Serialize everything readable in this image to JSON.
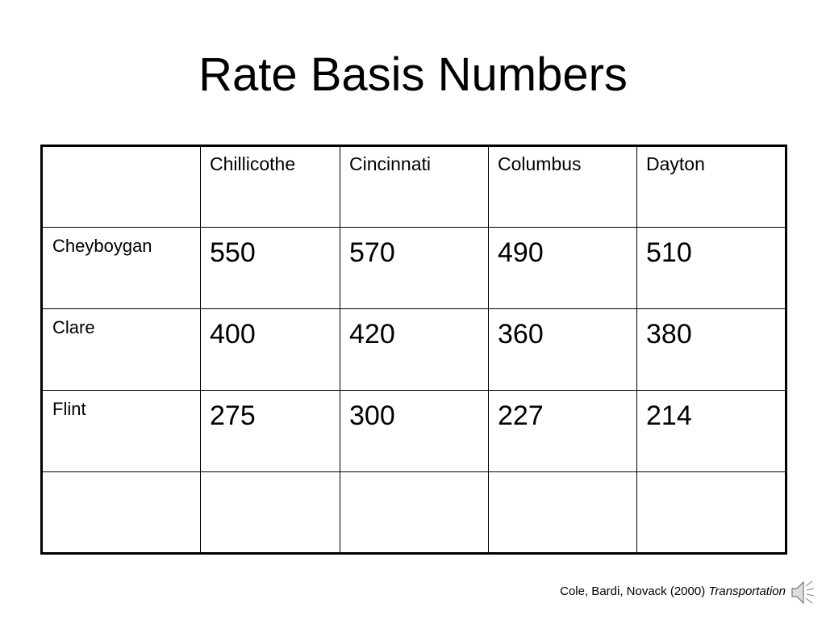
{
  "title": "Rate Basis Numbers",
  "table": {
    "columns": [
      "Chillicothe",
      "Cincinnati",
      "Columbus",
      "Dayton"
    ],
    "rows": [
      {
        "label": "Cheyboygan",
        "values": [
          550,
          570,
          490,
          510
        ]
      },
      {
        "label": "Clare",
        "values": [
          400,
          420,
          360,
          380
        ]
      },
      {
        "label": "Flint",
        "values": [
          275,
          300,
          227,
          214
        ]
      }
    ]
  },
  "citation": {
    "authors": "Cole, Bardi, Novack (2000)",
    "work": "Transportation"
  }
}
